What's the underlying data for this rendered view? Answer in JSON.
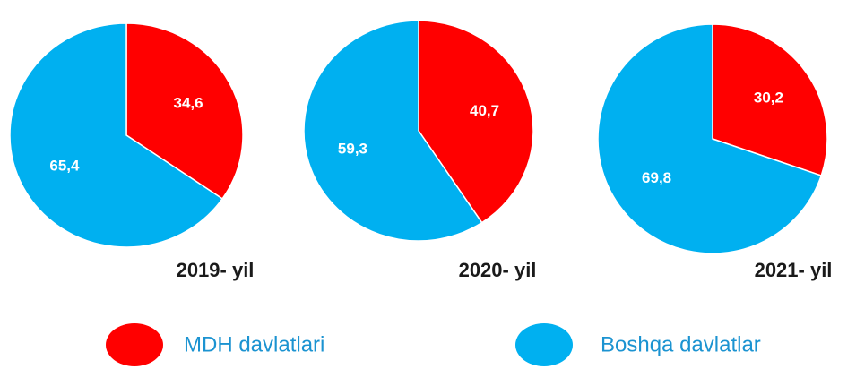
{
  "chart_data": [
    {
      "type": "pie",
      "title": "2019- yil",
      "values": [
        34.6,
        65.4
      ],
      "value_labels": [
        "34,6",
        "65,4"
      ]
    },
    {
      "type": "pie",
      "title": "2020- yil",
      "values": [
        40.7,
        59.3
      ],
      "value_labels": [
        "40,7",
        "59,3"
      ]
    },
    {
      "type": "pie",
      "title": "2021- yil",
      "values": [
        30.2,
        69.8
      ],
      "value_labels": [
        "30,2",
        "69,8"
      ]
    }
  ],
  "legend": {
    "labels": [
      "MDH davlatlari",
      "Boshqa davlatlar"
    ],
    "colors": [
      "#ff0000",
      "#00b0f0"
    ]
  }
}
